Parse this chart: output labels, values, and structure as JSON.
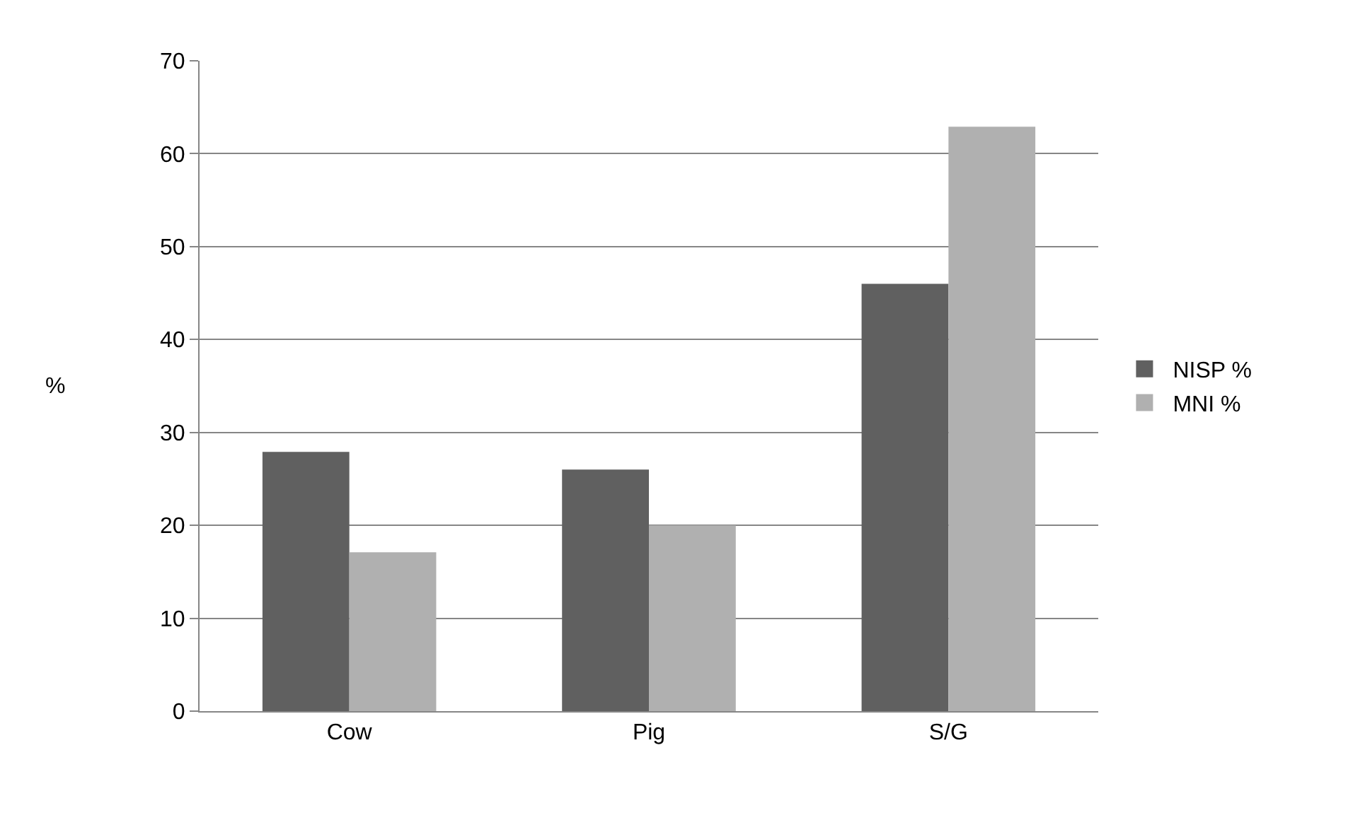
{
  "chart_data": {
    "type": "bar",
    "ylabel": "%",
    "categories": [
      "Cow",
      "Pig",
      "S/G"
    ],
    "series": [
      {
        "name": "NISP %",
        "color": "#606060",
        "values": [
          27.9,
          26,
          46
        ]
      },
      {
        "name": "MNI %",
        "color": "#b0b0b0",
        "values": [
          17.1,
          20,
          62.9
        ]
      }
    ],
    "ylim": [
      0,
      70
    ],
    "yticks": [
      0,
      10,
      20,
      30,
      40,
      50,
      60,
      70
    ],
    "grid": "y",
    "legend": "right"
  }
}
